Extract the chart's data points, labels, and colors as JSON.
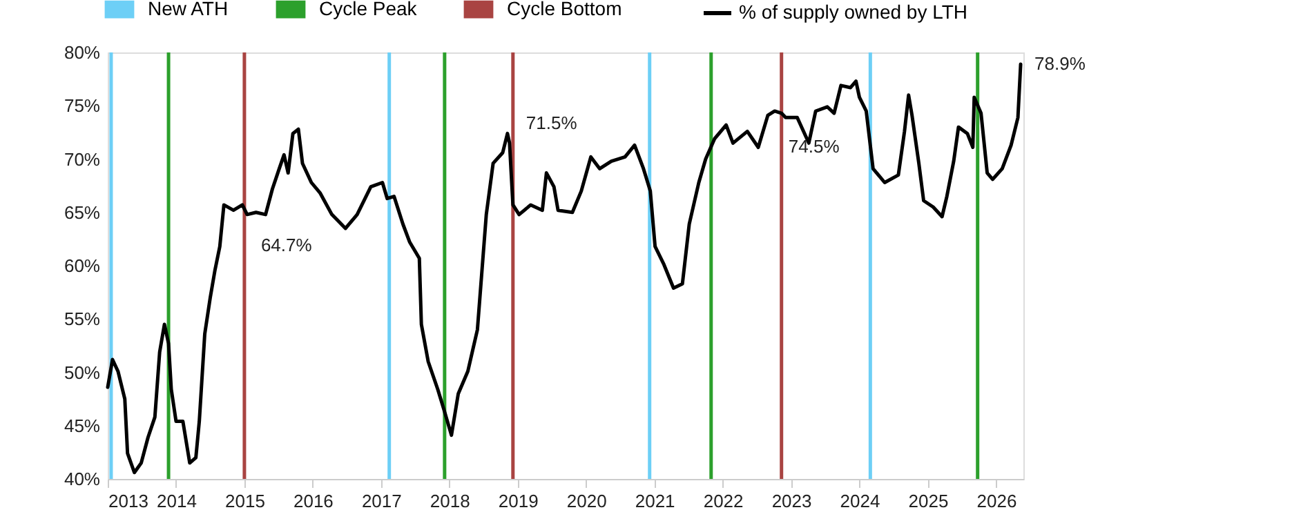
{
  "chart_data": {
    "type": "line",
    "series": [
      {
        "name": "% of supply owned by LTH",
        "color": "#000000",
        "x": [
          2013.0,
          2013.07,
          2013.15,
          2013.25,
          2013.29,
          2013.39,
          2013.49,
          2013.59,
          2013.69,
          2013.76,
          2013.83,
          2013.89,
          2013.93,
          2014.0,
          2014.1,
          2014.2,
          2014.29,
          2014.34,
          2014.42,
          2014.5,
          2014.57,
          2014.64,
          2014.7,
          2014.84,
          2014.97,
          2015.04,
          2015.17,
          2015.31,
          2015.41,
          2015.51,
          2015.58,
          2015.64,
          2015.71,
          2015.79,
          2015.85,
          2015.98,
          2016.11,
          2016.28,
          2016.48,
          2016.65,
          2016.85,
          2017.02,
          2017.09,
          2017.19,
          2017.32,
          2017.42,
          2017.56,
          2017.59,
          2017.69,
          2017.83,
          2017.93,
          2018.03,
          2018.13,
          2018.27,
          2018.41,
          2018.54,
          2018.64,
          2018.78,
          2018.85,
          2018.88,
          2018.93,
          2019.02,
          2019.19,
          2019.36,
          2019.42,
          2019.53,
          2019.59,
          2019.8,
          2019.93,
          2020.07,
          2020.2,
          2020.37,
          2020.57,
          2020.71,
          2020.84,
          2020.94,
          2021.01,
          2021.14,
          2021.28,
          2021.41,
          2021.51,
          2021.65,
          2021.75,
          2021.88,
          2022.05,
          2022.15,
          2022.36,
          2022.52,
          2022.66,
          2022.76,
          2022.86,
          2022.92,
          2023.09,
          2023.26,
          2023.36,
          2023.53,
          2023.63,
          2023.73,
          2023.87,
          2023.95,
          2024.0,
          2024.1,
          2024.2,
          2024.37,
          2024.57,
          2024.66,
          2024.72,
          2024.77,
          2024.87,
          2024.94,
          2025.08,
          2025.21,
          2025.28,
          2025.38,
          2025.45,
          2025.58,
          2025.66,
          2025.68,
          2025.78,
          2025.87,
          2025.95,
          2026.09,
          2026.22,
          2026.32,
          2026.36
        ],
        "values": [
          48.6,
          51.2,
          50.1,
          47.5,
          42.4,
          40.6,
          41.5,
          43.9,
          45.8,
          51.9,
          54.5,
          52.7,
          48.4,
          45.4,
          45.4,
          41.5,
          42.0,
          45.4,
          53.6,
          57.0,
          59.6,
          61.8,
          65.7,
          65.2,
          65.7,
          64.8,
          65.0,
          64.8,
          67.2,
          69.1,
          70.4,
          68.7,
          72.4,
          72.8,
          69.6,
          67.8,
          66.8,
          64.8,
          63.5,
          64.8,
          67.4,
          67.8,
          66.3,
          66.5,
          63.9,
          62.2,
          60.7,
          54.5,
          51.0,
          48.4,
          46.3,
          44.1,
          48.0,
          50.1,
          54.0,
          64.8,
          69.6,
          70.6,
          72.4,
          71.5,
          65.7,
          64.8,
          65.7,
          65.2,
          68.7,
          67.4,
          65.2,
          65.0,
          67.0,
          70.2,
          69.1,
          69.8,
          70.2,
          71.3,
          69.1,
          67.0,
          61.8,
          60.1,
          57.9,
          58.3,
          63.9,
          67.8,
          70.0,
          71.9,
          73.2,
          71.5,
          72.6,
          71.1,
          74.1,
          74.5,
          74.3,
          73.9,
          73.9,
          71.5,
          74.5,
          74.9,
          74.3,
          76.9,
          76.7,
          77.3,
          75.8,
          74.5,
          69.1,
          67.8,
          68.5,
          72.6,
          76.0,
          74.1,
          69.6,
          66.1,
          65.5,
          64.6,
          66.5,
          69.8,
          73.0,
          72.4,
          71.1,
          75.8,
          74.3,
          68.7,
          68.1,
          69.1,
          71.3,
          73.9,
          78.9
        ]
      }
    ],
    "ref_lines": [
      {
        "axis": "x",
        "value": 2013.05,
        "label": "New ATH",
        "color": "#6dcff6"
      },
      {
        "axis": "x",
        "value": 2013.89,
        "label": "Cycle Peak",
        "color": "#2ca02c"
      },
      {
        "axis": "x",
        "value": 2015.0,
        "label": "Cycle Bottom",
        "color": "#a94442"
      },
      {
        "axis": "x",
        "value": 2017.12,
        "color": "#6dcff6"
      },
      {
        "axis": "x",
        "value": 2017.93,
        "color": "#2ca02c"
      },
      {
        "axis": "x",
        "value": 2018.93,
        "color": "#a94442"
      },
      {
        "axis": "x",
        "value": 2020.93,
        "color": "#6dcff6"
      },
      {
        "axis": "x",
        "value": 2021.83,
        "color": "#2ca02c"
      },
      {
        "axis": "x",
        "value": 2022.86,
        "color": "#a94442"
      },
      {
        "axis": "x",
        "value": 2024.16,
        "color": "#6dcff6"
      },
      {
        "axis": "x",
        "value": 2025.73,
        "color": "#2ca02c"
      }
    ],
    "annotations": [
      {
        "text": "64.7%",
        "x": 2015.0,
        "y": 64.7
      },
      {
        "text": "71.5%",
        "x": 2018.88,
        "y": 71.5
      },
      {
        "text": "74.5%",
        "x": 2022.76,
        "y": 74.5
      },
      {
        "text": "78.9%",
        "x": 2026.36,
        "y": 78.9
      }
    ],
    "xlim": [
      2013,
      2026.4
    ],
    "xticks": [
      2013,
      2014,
      2015,
      2016,
      2017,
      2018,
      2019,
      2020,
      2021,
      2022,
      2023,
      2024,
      2025,
      2026
    ],
    "ylim": [
      40,
      80
    ],
    "yticks": [
      {
        "value": 40,
        "label": "40%"
      },
      {
        "value": 45,
        "label": "45%"
      },
      {
        "value": 50,
        "label": "50%"
      },
      {
        "value": 55,
        "label": "55%"
      },
      {
        "value": 60,
        "label": "60%"
      },
      {
        "value": 65,
        "label": "65%"
      },
      {
        "value": 70,
        "label": "70%"
      },
      {
        "value": 75,
        "label": "75%"
      },
      {
        "value": 80,
        "label": "80%"
      }
    ],
    "legend": "top",
    "grid": false,
    "line_style": "solid",
    "marker": "none"
  }
}
